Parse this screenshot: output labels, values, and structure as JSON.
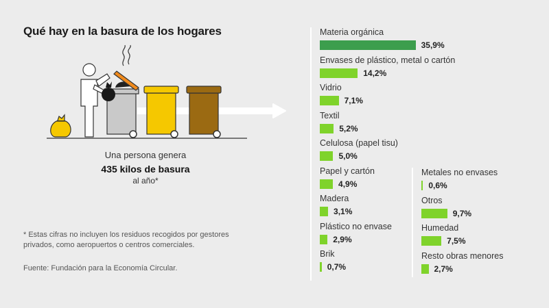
{
  "title": "Qué hay en la basura de los hogares",
  "stat": {
    "line1": "Una persona genera",
    "line2": "435 kilos de basura",
    "line3": "al año*"
  },
  "footnote": "* Estas cifras no incluyen los residuos recogidos por gestores privados, como aeropuertos o centros comerciales.",
  "source": "Fuente: Fundación para la Economía Circular.",
  "colors": {
    "bar_primary": "#3c9e4d",
    "bar_secondary": "#7fd32b",
    "bin_grey": "#c9c9c9",
    "bin_yellow": "#f5c800",
    "bin_brown": "#9b6a12",
    "arrow": "#ffffff"
  },
  "chart_data": {
    "type": "bar",
    "orientation": "horizontal",
    "unit": "%",
    "xlim": [
      0,
      36
    ],
    "columns": [
      {
        "categories": [
          "Materia orgánica",
          "Envases de plástico, metal o cartón",
          "Vidrio",
          "Textil",
          "Celulosa (papel tisu)",
          "Papel y cartón",
          "Madera",
          "Plástico no envase",
          "Brik"
        ],
        "values": [
          35.9,
          14.2,
          7.1,
          5.2,
          5.0,
          4.9,
          3.1,
          2.9,
          0.7
        ],
        "labels": [
          "35,9%",
          "14,2%",
          "7,1%",
          "5,2%",
          "5,0%",
          "4,9%",
          "3,1%",
          "2,9%",
          "0,7%"
        ]
      },
      {
        "categories": [
          "Metales no envases",
          "Otros",
          "Humedad",
          "Resto obras menores"
        ],
        "values": [
          0.6,
          9.7,
          7.5,
          2.7
        ],
        "labels": [
          "0,6%",
          "9,7%",
          "7,5%",
          "2,7%"
        ]
      }
    ]
  }
}
